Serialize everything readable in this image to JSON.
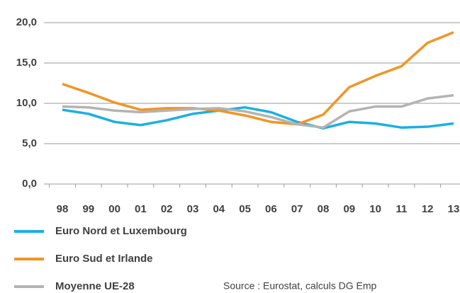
{
  "chart_data": {
    "type": "line",
    "categories": [
      "98",
      "99",
      "00",
      "01",
      "02",
      "03",
      "04",
      "05",
      "06",
      "07",
      "08",
      "09",
      "10",
      "11",
      "12",
      "13"
    ],
    "series": [
      {
        "name": "Euro Nord et Luxembourg",
        "color": "#1aafe6",
        "values": [
          9.2,
          8.7,
          7.7,
          7.3,
          7.9,
          8.7,
          9.1,
          9.5,
          8.9,
          7.7,
          6.9,
          7.7,
          7.5,
          7.0,
          7.1,
          7.5
        ]
      },
      {
        "name": "Euro Sud et Irlande",
        "color": "#f39422",
        "values": [
          12.4,
          11.3,
          10.1,
          9.2,
          9.4,
          9.4,
          9.1,
          8.5,
          7.7,
          7.4,
          8.6,
          12.0,
          13.4,
          14.6,
          17.5,
          18.8
        ]
      },
      {
        "name": "Moyenne UE-28",
        "color": "#b3b3b3",
        "values": [
          9.6,
          9.5,
          9.1,
          8.9,
          9.1,
          9.3,
          9.4,
          9.0,
          8.3,
          7.4,
          7.0,
          9.0,
          9.6,
          9.6,
          10.6,
          11.0
        ]
      }
    ],
    "ylim": [
      0,
      20
    ],
    "yticks": [
      {
        "value": 0,
        "label": "0,0"
      },
      {
        "value": 5,
        "label": "5,0"
      },
      {
        "value": 10,
        "label": "10,0"
      },
      {
        "value": 15,
        "label": "15,0"
      },
      {
        "value": 20,
        "label": "20,0"
      }
    ],
    "grid": true,
    "source": "Source : Eurostat, calculs DG Emp"
  }
}
